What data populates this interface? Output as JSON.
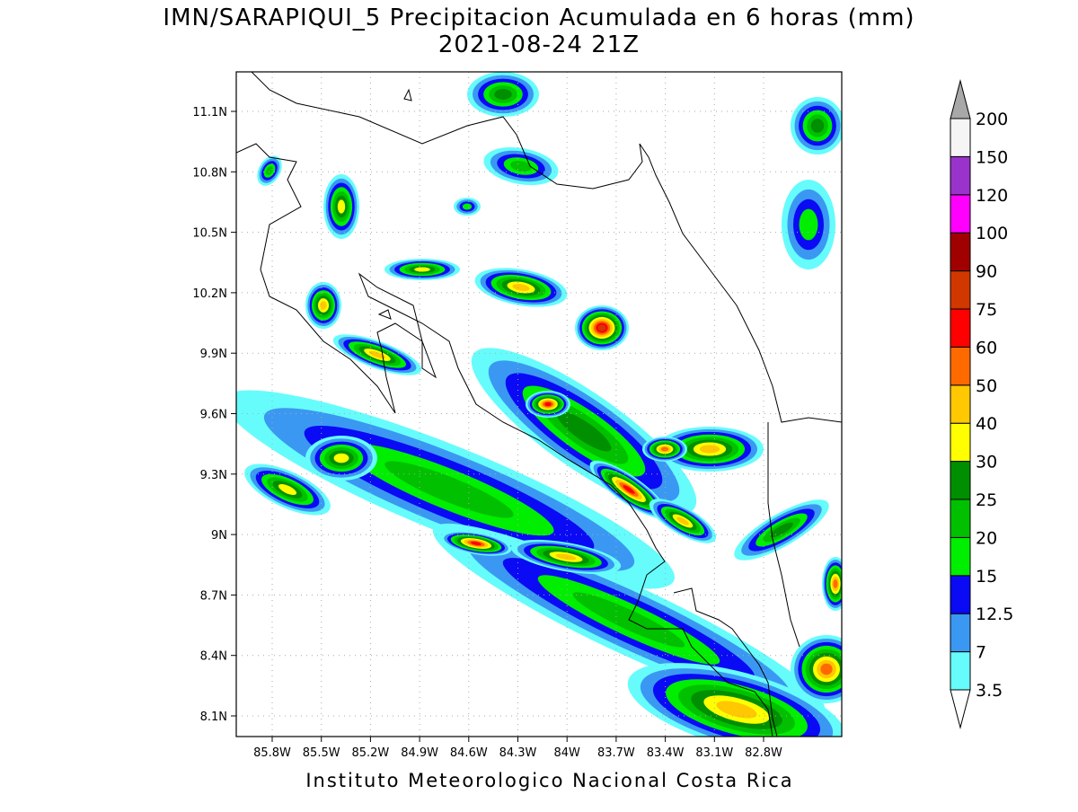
{
  "title": "IMN/SARAPIQUI_5 Precipitacion Acumulada en 6 horas (mm)",
  "subtitle": "2021-08-24 21Z",
  "map": {
    "lon_ticks": [
      "85.8W",
      "85.5W",
      "85.2W",
      "84.9W",
      "84.6W",
      "84.3W",
      "84W",
      "83.7W",
      "83.4W",
      "83.1W",
      "82.8W"
    ],
    "lat_ticks": [
      "11.1N",
      "10.8N",
      "10.5N",
      "10.2N",
      "9.9N",
      "9.6N",
      "9.3N",
      "9N",
      "8.7N",
      "8.4N",
      "8.1N"
    ]
  },
  "colorbar": {
    "levels": [
      3.5,
      7,
      12.5,
      15,
      20,
      25,
      30,
      40,
      50,
      60,
      75,
      90,
      100,
      120,
      150,
      200
    ],
    "colors": [
      "#66fcfc",
      "#3a98f2",
      "#0a0af5",
      "#00ee00",
      "#00c000",
      "#008f00",
      "#ffff00",
      "#ffc800",
      "#ff6a00",
      "#ff0000",
      "#d03800",
      "#a00000",
      "#ff00ff",
      "#9933cc",
      "#f5f5f5"
    ],
    "below_color": "#ffffff",
    "above_color": "#a8a8a8"
  },
  "footer": "Instituto Meteorologico Nacional Costa Rica"
}
